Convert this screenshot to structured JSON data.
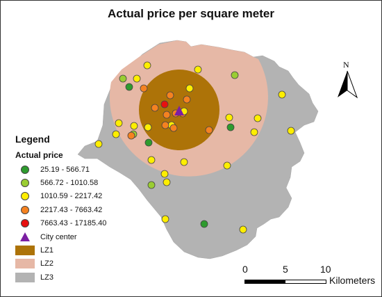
{
  "title": "Actual price per square meter",
  "legend": {
    "heading": "Legend",
    "subheading": "Actual price",
    "classes": [
      {
        "label": "25.19 - 566.71",
        "color": "#2e9b2e"
      },
      {
        "label": "566.72 - 1010.58",
        "color": "#9acd32"
      },
      {
        "label": "1010.59 - 2217.42",
        "color": "#ffee00"
      },
      {
        "label": "2217.43 - 7663.42",
        "color": "#f58220"
      },
      {
        "label": "7663.43 - 17185.40",
        "color": "#e81010"
      }
    ],
    "city_center": {
      "label": "City center",
      "color": "#7b1fa2"
    },
    "zones": [
      {
        "label": "LZ1",
        "color": "#ad7308"
      },
      {
        "label": "LZ2",
        "color": "#e6b8a6"
      },
      {
        "label": "LZ3",
        "color": "#b3b3b3"
      }
    ]
  },
  "north_arrow": {
    "label": "N"
  },
  "scale_bar": {
    "ticks": [
      "0",
      "5",
      "10"
    ],
    "unit": "Kilometers"
  },
  "points_price_class": [
    1,
    2,
    2,
    2,
    1,
    0,
    2,
    3,
    3,
    3,
    4,
    3,
    3,
    3,
    3,
    2,
    2,
    2,
    2,
    2,
    2,
    1,
    2,
    2,
    3,
    2,
    3,
    3,
    0,
    2,
    2,
    2,
    0,
    3,
    2,
    2,
    2,
    2,
    2,
    1,
    0,
    2,
    2
  ]
}
